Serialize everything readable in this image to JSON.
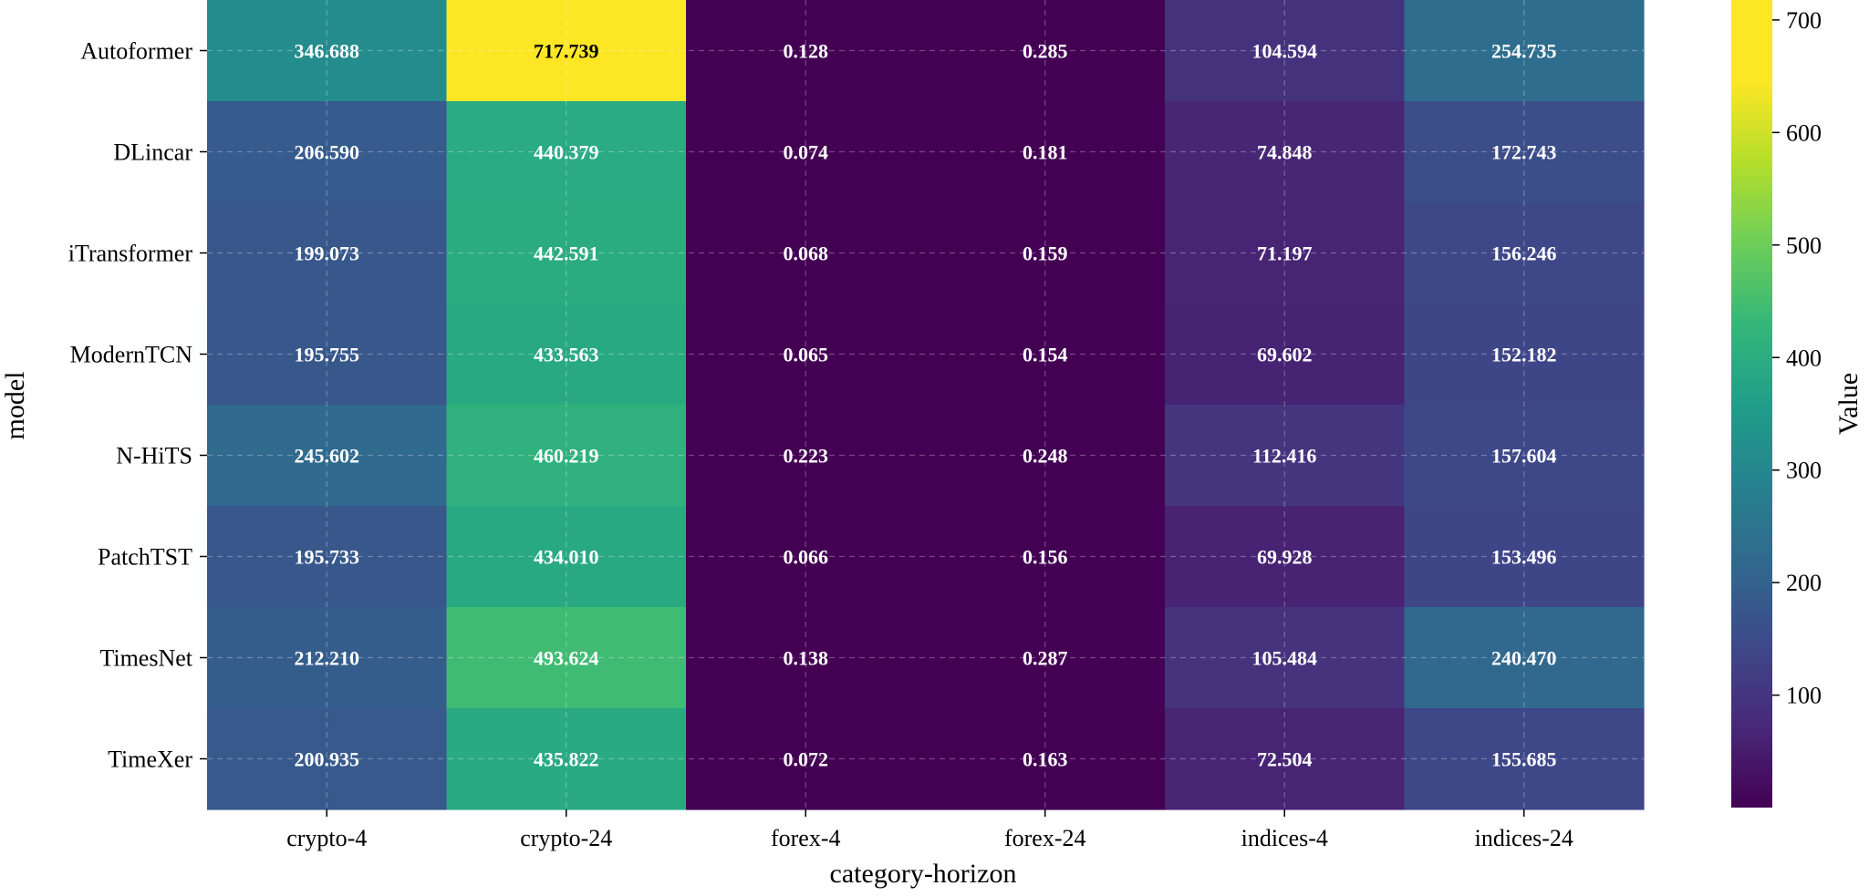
{
  "chart_data": {
    "type": "heatmap",
    "xlabel": "category-horizon",
    "ylabel": "model",
    "colorbar_label": "Value",
    "colormap": "viridis",
    "vmin": 0.065,
    "vmax": 717.739,
    "colorbar_ticks": [
      100,
      200,
      300,
      400,
      500,
      600,
      700
    ],
    "grid": true,
    "columns": [
      "crypto-4",
      "crypto-24",
      "forex-4",
      "forex-24",
      "indices-4",
      "indices-24"
    ],
    "rows": [
      "Autoformer",
      "DLincar",
      "iTransformer",
      "ModernTCN",
      "N-HiTS",
      "PatchTST",
      "TimesNet",
      "TimeXer"
    ],
    "values": [
      [
        346.688,
        717.739,
        0.128,
        0.285,
        104.594,
        254.735
      ],
      [
        206.59,
        440.379,
        0.074,
        0.181,
        74.848,
        172.743
      ],
      [
        199.073,
        442.591,
        0.068,
        0.159,
        71.197,
        156.246
      ],
      [
        195.755,
        433.563,
        0.065,
        0.154,
        69.602,
        152.182
      ],
      [
        245.602,
        460.219,
        0.223,
        0.248,
        112.416,
        157.604
      ],
      [
        195.733,
        434.01,
        0.066,
        0.156,
        69.928,
        153.496
      ],
      [
        212.21,
        493.624,
        0.138,
        0.287,
        105.484,
        240.47
      ],
      [
        200.935,
        435.822,
        0.072,
        0.163,
        72.504,
        155.685
      ]
    ],
    "cell_labels": [
      [
        "346.688",
        "717.739",
        "0.128",
        "0.285",
        "104.594",
        "254.735"
      ],
      [
        "206.590",
        "440.379",
        "0.074",
        "0.181",
        "74.848",
        "172.743"
      ],
      [
        "199.073",
        "442.591",
        "0.068",
        "0.159",
        "71.197",
        "156.246"
      ],
      [
        "195.755",
        "433.563",
        "0.065",
        "0.154",
        "69.602",
        "152.182"
      ],
      [
        "245.602",
        "460.219",
        "0.223",
        "0.248",
        "112.416",
        "157.604"
      ],
      [
        "195.733",
        "434.010",
        "0.066",
        "0.156",
        "69.928",
        "153.496"
      ],
      [
        "212.210",
        "493.624",
        "0.138",
        "0.287",
        "105.484",
        "240.470"
      ],
      [
        "200.935",
        "435.822",
        "0.072",
        "0.163",
        "72.504",
        "155.685"
      ]
    ]
  }
}
